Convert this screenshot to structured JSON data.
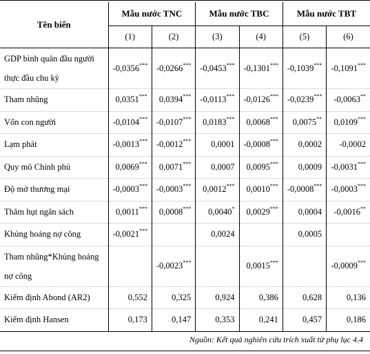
{
  "header": {
    "variable_col": "Tên biến",
    "groups": [
      "Mẫu nước TNC",
      "Mẫu nước TBC",
      "Mẫu nước TBT"
    ],
    "models": [
      "(1)",
      "(2)",
      "(3)",
      "(4)",
      "(5)",
      "(6)"
    ]
  },
  "rows": [
    {
      "label": "GDP bình quân đầu người thực đầu chu kỳ",
      "cells": [
        [
          "-0,0356",
          "***"
        ],
        [
          "-0,0266",
          "***"
        ],
        [
          "-0,0453",
          "***"
        ],
        [
          "-0,1301",
          "***"
        ],
        [
          "-0,1039",
          "***"
        ],
        [
          "-0,1091",
          "***"
        ]
      ]
    },
    {
      "label": "Tham nhũng",
      "cells": [
        [
          "0,0351",
          "***"
        ],
        [
          "0,0394",
          "***"
        ],
        [
          "-0,0113",
          "***"
        ],
        [
          "-0,0126",
          "***"
        ],
        [
          "-0,0239",
          "***"
        ],
        [
          "-0,0063",
          "**"
        ]
      ]
    },
    {
      "label": "Vốn con người",
      "cells": [
        [
          "-0,0104",
          "***"
        ],
        [
          "-0,0107",
          "***"
        ],
        [
          "0,0183",
          "***"
        ],
        [
          "0,0068",
          "***"
        ],
        [
          "0,0075",
          "**"
        ],
        [
          "0,0109",
          "***"
        ]
      ]
    },
    {
      "label": "Lạm phát",
      "cells": [
        [
          "-0,0013",
          "***"
        ],
        [
          "-0,0012",
          "***"
        ],
        [
          "0,0001",
          ""
        ],
        [
          "-0,0008",
          "***"
        ],
        [
          "0,0002",
          ""
        ],
        [
          "-0,0002",
          ""
        ]
      ]
    },
    {
      "label": "Quy mô Chính phủ",
      "cells": [
        [
          "0,0069",
          "***"
        ],
        [
          "0,0071",
          "***"
        ],
        [
          "0,0007",
          ""
        ],
        [
          "0,0095",
          "***"
        ],
        [
          "0,0009",
          ""
        ],
        [
          "-0,0031",
          "***"
        ]
      ]
    },
    {
      "label": "Độ mở thương mại",
      "cells": [
        [
          "-0,0003",
          "***"
        ],
        [
          "-0,0003",
          "***"
        ],
        [
          "0,0012",
          "***"
        ],
        [
          "0,0010",
          "***"
        ],
        [
          "-0,0008",
          "***"
        ],
        [
          "-0,0003",
          "***"
        ]
      ]
    },
    {
      "label": "Thâm hụt ngân sách",
      "cells": [
        [
          "0,0011",
          "***"
        ],
        [
          "0,0008",
          "***"
        ],
        [
          "0,0040",
          "*"
        ],
        [
          "0,0029",
          "***"
        ],
        [
          "0,0004",
          ""
        ],
        [
          "-0,0016",
          "**"
        ]
      ]
    },
    {
      "label": "Khủng hoảng nợ công",
      "cells": [
        [
          "-0,0021",
          "***"
        ],
        [
          "",
          ""
        ],
        [
          "0,0024",
          ""
        ],
        [
          "",
          ""
        ],
        [
          "0,0005",
          ""
        ],
        [
          "",
          ""
        ]
      ]
    },
    {
      "label": "Tham nhũng*Khủng hoảng nợ công",
      "cells": [
        [
          "",
          ""
        ],
        [
          "-0,0023",
          "***"
        ],
        [
          "",
          ""
        ],
        [
          "0,0015",
          "***"
        ],
        [
          "",
          ""
        ],
        [
          "-0,0009",
          "***"
        ]
      ]
    },
    {
      "label": "Kiểm định Abond (AR2)",
      "cells": [
        [
          "0,552",
          ""
        ],
        [
          "0,325",
          ""
        ],
        [
          "0,924",
          ""
        ],
        [
          "0,386",
          ""
        ],
        [
          "0,628",
          ""
        ],
        [
          "0,136",
          ""
        ]
      ]
    },
    {
      "label": "Kiểm định Hansen",
      "cells": [
        [
          "0,173",
          ""
        ],
        [
          "0,147",
          ""
        ],
        [
          "0,353",
          ""
        ],
        [
          "0,241",
          ""
        ],
        [
          "0,457",
          ""
        ],
        [
          "0,186",
          ""
        ]
      ]
    }
  ],
  "source": "Nguồn: Kết quả nghiên cứu trích xuất từ phụ lục 4.4"
}
